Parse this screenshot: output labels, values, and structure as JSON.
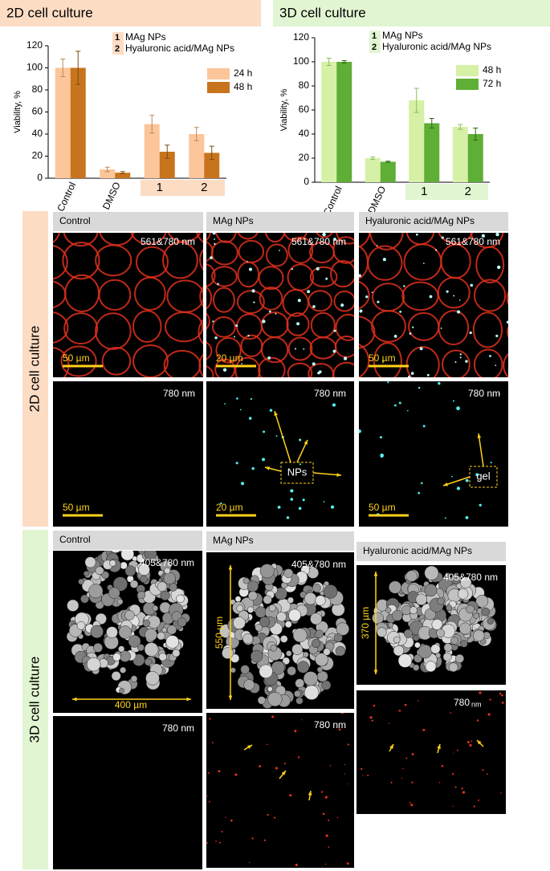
{
  "chart_data": [
    {
      "type": "bar",
      "title": "2D cell culture",
      "y_label": "Viability, %",
      "categories": [
        "Control",
        "DMSO",
        "1",
        "2"
      ],
      "category_colors": [
        "#e2401c",
        "#e2401c",
        "#000000",
        "#000000"
      ],
      "groups": [
        {
          "label": "1",
          "name": "MAg NPs"
        },
        {
          "label": "2",
          "name": "Hyaluronic acid/MAg NPs"
        }
      ],
      "series": [
        {
          "name": "24 h",
          "color": "#fcc59a",
          "values": [
            100,
            8,
            49,
            40
          ],
          "errors": [
            8,
            2,
            8,
            6
          ]
        },
        {
          "name": "48 h",
          "color": "#c8741e",
          "values": [
            100,
            5,
            24,
            23
          ],
          "errors": [
            15,
            1,
            6,
            6
          ]
        }
      ],
      "ylim": [
        0,
        120
      ],
      "yticks": [
        0,
        20,
        40,
        60,
        80,
        100,
        120
      ]
    },
    {
      "type": "bar",
      "title": "3D cell culture",
      "y_label": "Viability, %",
      "categories": [
        "Control",
        "DMSO",
        "1",
        "2"
      ],
      "category_colors": [
        "#e2401c",
        "#e2401c",
        "#000000",
        "#000000"
      ],
      "groups": [
        {
          "label": "1",
          "name": "MAg NPs"
        },
        {
          "label": "2",
          "name": "Hyaluronic acid/MAg NPs"
        }
      ],
      "series": [
        {
          "name": "48 h",
          "color": "#d6f0a6",
          "values": [
            100,
            20,
            68,
            46
          ],
          "errors": [
            3,
            1,
            10,
            2
          ]
        },
        {
          "name": "72 h",
          "color": "#5fae35",
          "values": [
            100,
            17,
            49,
            40
          ],
          "errors": [
            1,
            0.5,
            4,
            5
          ]
        }
      ],
      "ylim": [
        0,
        120
      ],
      "yticks": [
        0,
        20,
        40,
        60,
        80,
        100,
        120
      ]
    }
  ],
  "panels_2d": {
    "label": "2D cell culture",
    "columns": [
      {
        "title": "Control",
        "top": "561&780 nm",
        "top_scale": "50 µm",
        "bottom": "780 nm",
        "bottom_scale": "50 µm"
      },
      {
        "title": "MAg NPs",
        "top": "561&780 nm",
        "top_scale": "20 µm",
        "bottom": "780 nm",
        "bottom_scale": "20 µm",
        "callout": "NPs"
      },
      {
        "title": "Hyaluronic acid/MAg NPs",
        "top": "561&780 nm",
        "top_scale": "50 µm",
        "bottom": "780 nm",
        "bottom_scale": "50 µm",
        "callout": "gel"
      }
    ]
  },
  "panels_3d": {
    "label": "3D cell culture",
    "columns": [
      {
        "title": "Control",
        "top": "405&780 nm",
        "bottom": "780 nm",
        "dimension": "400 µm"
      },
      {
        "title": "MAg NPs",
        "top": "405&780 nm",
        "bottom": "780 nm",
        "dimension": "550 µm"
      },
      {
        "title": "Hyaluronic acid/MAg NPs",
        "top": "405&780 nm",
        "bottom": "780",
        "bottom_unit": "nm",
        "dimension": "370 µm"
      }
    ]
  }
}
